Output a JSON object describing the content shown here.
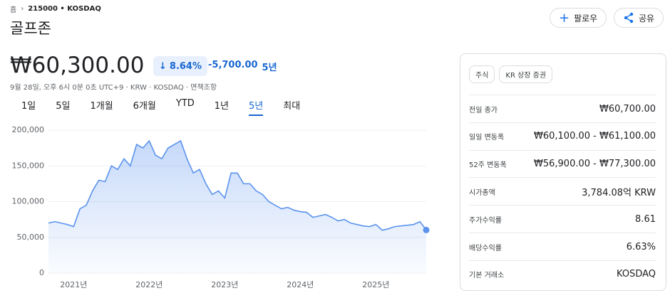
{
  "breadcrumb": {
    "home": "홈",
    "ticker": "215000 • KOSDAQ"
  },
  "header": {
    "title": "골프존",
    "follow": "팔로우",
    "share": "공유"
  },
  "quote": {
    "price": "₩60,300.00",
    "change_pct": "8.64%",
    "change": "-5,700.00",
    "period": "5년",
    "meta": "9월 28일, 오후 6시 0분 0초 UTC+9 · KRW · KOSDAQ · 면책조항"
  },
  "ranges": [
    "1일",
    "5일",
    "1개월",
    "6개월",
    "YTD",
    "1년",
    "5년",
    "최대"
  ],
  "active_range": 6,
  "panel": {
    "tags": [
      "주식",
      "KR 상장 증권"
    ],
    "rows": [
      [
        "전일 종가",
        "₩60,700.00"
      ],
      [
        "일일 변동폭",
        "₩60,100.00 - ₩61,100.00"
      ],
      [
        "52주 변동폭",
        "₩56,900.00 - ₩77,300.00"
      ],
      [
        "시가총액",
        "3,784.08억 KRW"
      ],
      [
        "주가수익률",
        "8.61"
      ],
      [
        "배당수익률",
        "6.63%"
      ],
      [
        "기본 거래소",
        "KOSDAQ"
      ]
    ]
  },
  "chart_data": {
    "type": "area",
    "color": "#5b93ee",
    "categories": [
      null,
      null,
      null,
      null,
      "2021년",
      null,
      null,
      null,
      null,
      null,
      null,
      null,
      null,
      null,
      null,
      null,
      "2022년",
      null,
      null,
      null,
      null,
      null,
      null,
      null,
      null,
      null,
      null,
      null,
      "2023년",
      null,
      null,
      null,
      null,
      null,
      null,
      null,
      null,
      null,
      null,
      null,
      "2024년",
      null,
      null,
      null,
      null,
      null,
      null,
      null,
      null,
      null,
      null,
      null,
      "2025년",
      null,
      null,
      null,
      null,
      null,
      null,
      null,
      null
    ],
    "values": [
      70000,
      72000,
      70000,
      68000,
      65000,
      90000,
      95000,
      115000,
      130000,
      128000,
      150000,
      145000,
      160000,
      150000,
      180000,
      175000,
      185000,
      165000,
      160000,
      175000,
      180000,
      185000,
      160000,
      140000,
      145000,
      125000,
      110000,
      115000,
      105000,
      140000,
      140000,
      125000,
      125000,
      115000,
      110000,
      100000,
      95000,
      90000,
      92000,
      88000,
      86000,
      85000,
      78000,
      80000,
      82000,
      78000,
      73000,
      75000,
      70000,
      68000,
      66000,
      65000,
      68000,
      60000,
      62000,
      65000,
      66000,
      67000,
      68000,
      72000,
      60300
    ],
    "ylim": [
      0,
      200000
    ],
    "yticks": [
      0,
      {
        "value": 50000,
        "label": "50,000"
      },
      {
        "value": 100000,
        "label": "100,000"
      },
      {
        "value": 150000,
        "label": "150,000"
      },
      {
        "value": 200000,
        "label": "200,000"
      }
    ],
    "grid": true
  }
}
